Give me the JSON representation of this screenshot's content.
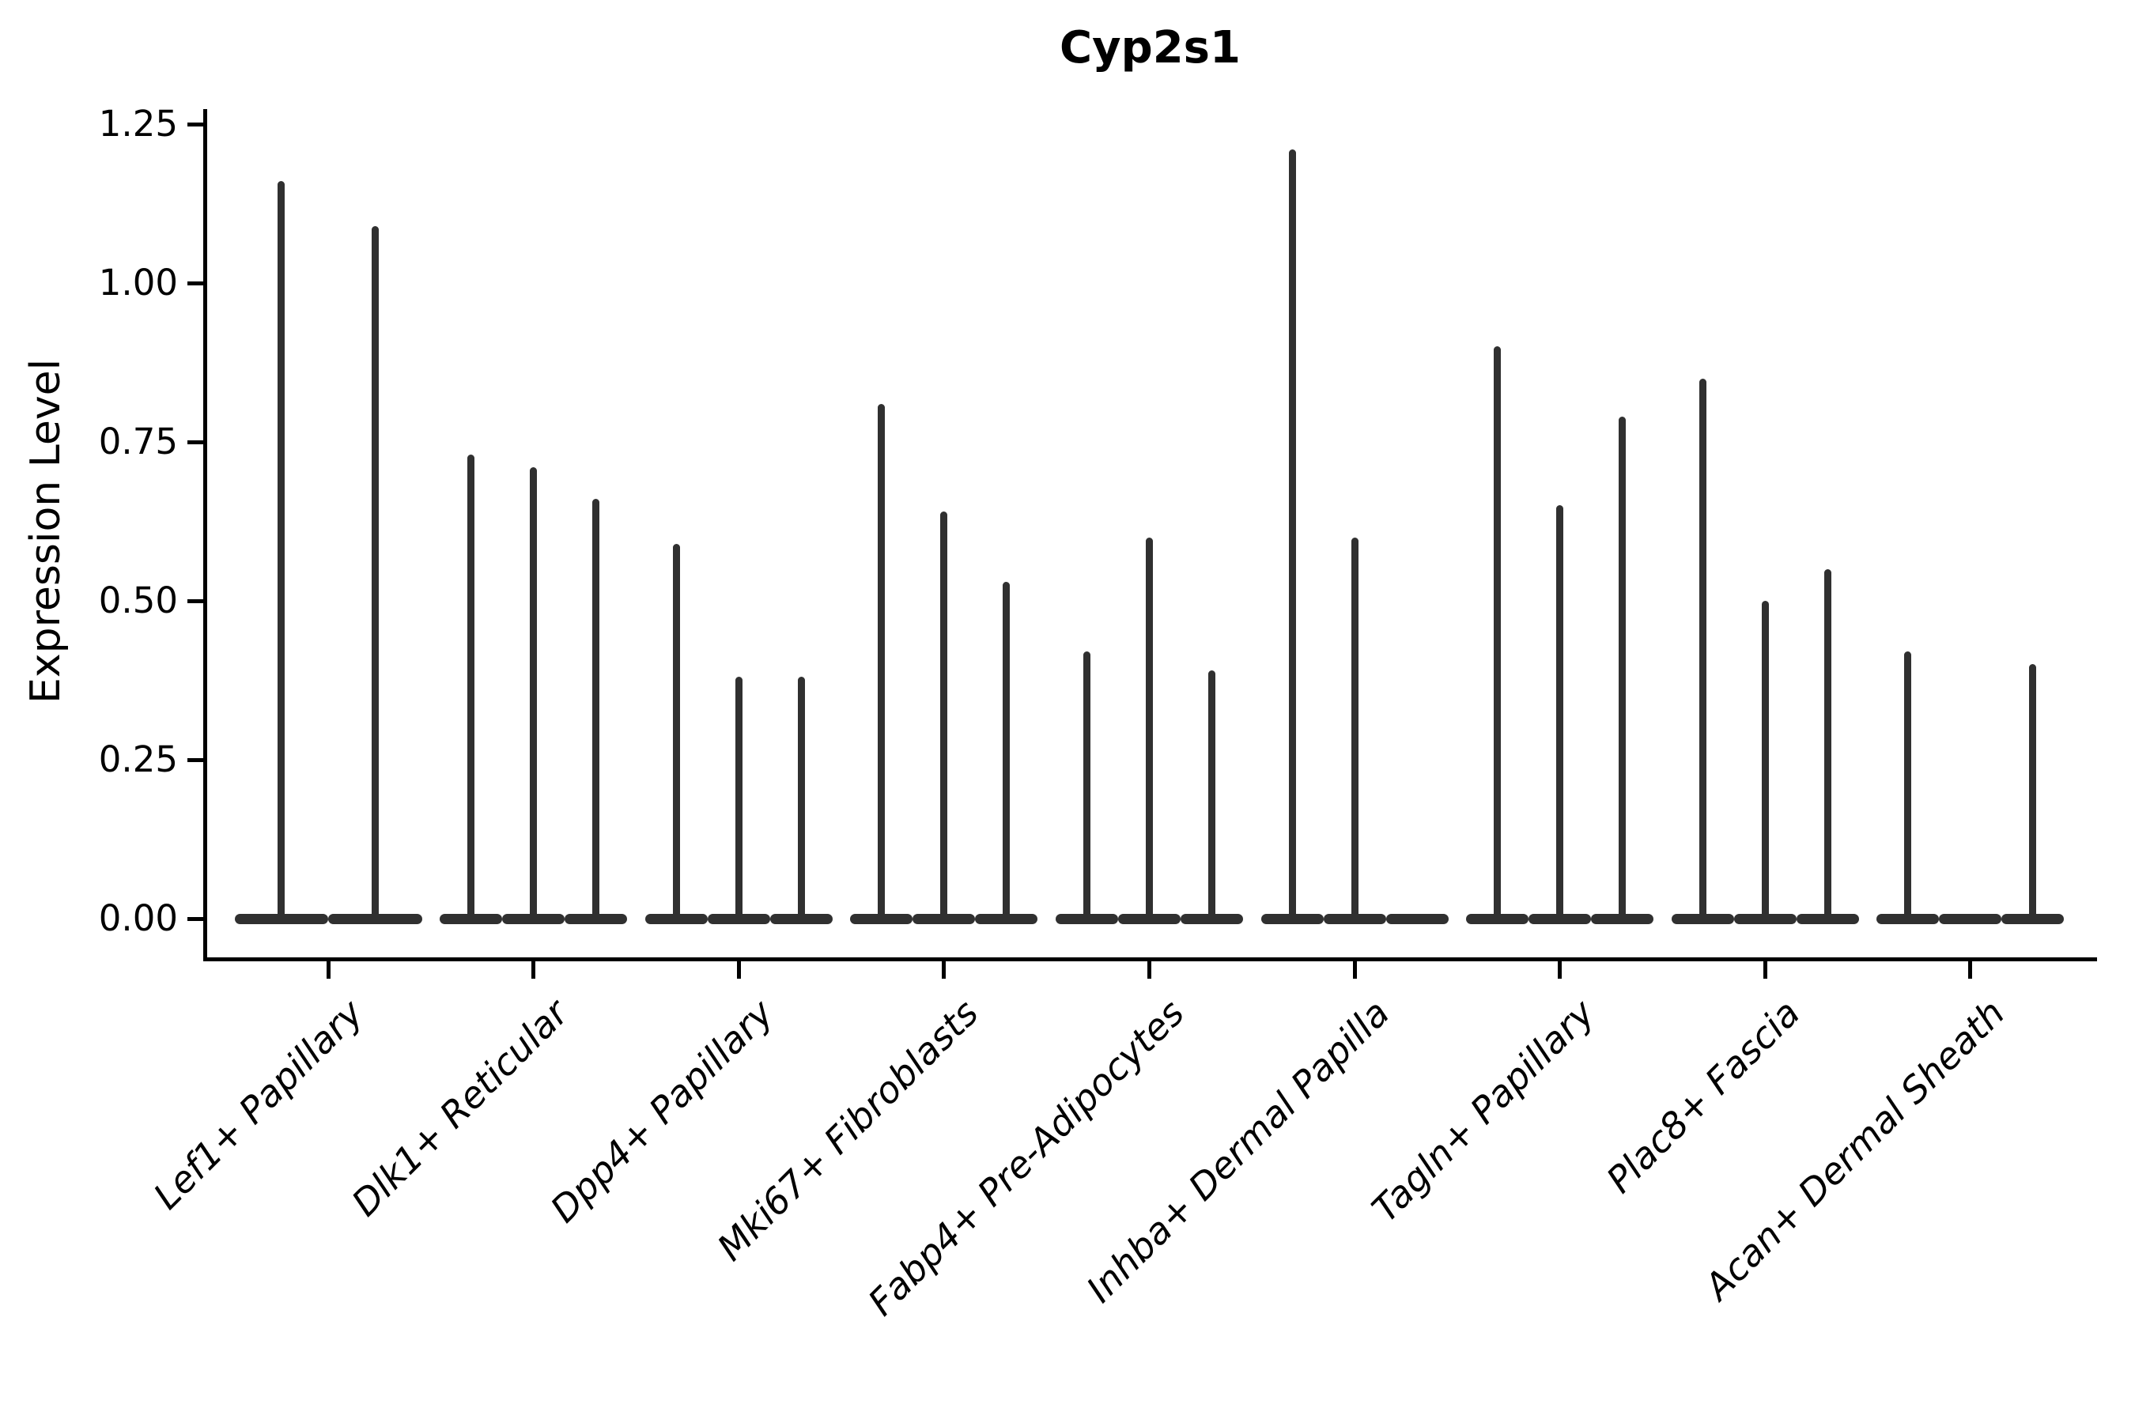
{
  "title": "Cyp2s1",
  "colors": {
    "violin": "#303030",
    "axis": "#000000",
    "text": "#000000",
    "background": "#ffffff"
  },
  "chart_data": {
    "type": "violin",
    "title": "Cyp2s1",
    "xlabel": "",
    "ylabel": "Expression Level",
    "grid": false,
    "legend": null,
    "ylim": [
      -0.06,
      1.27
    ],
    "yticks": [
      {
        "label": "0.00",
        "value": 0.0
      },
      {
        "label": "0.25",
        "value": 0.25
      },
      {
        "label": "0.50",
        "value": 0.5
      },
      {
        "label": "0.75",
        "value": 0.75
      },
      {
        "label": "1.00",
        "value": 1.0
      },
      {
        "label": "1.25",
        "value": 1.25
      }
    ],
    "categories": [
      "Lef1+ Papillary",
      "Dlk1+ Reticular",
      "Dpp4+ Papillary",
      "Mki67+ Fibroblasts",
      "Fabp4+ Pre-Adipocytes",
      "Inhba+ Dermal Papilla",
      "Tagln+ Papillary",
      "Plac8+ Fascia",
      "Acan+ Dermal Sheath"
    ],
    "groups": [
      {
        "category": "Lef1+ Papillary",
        "violin_peaks": [
          1.16,
          1.09
        ]
      },
      {
        "category": "Dlk1+ Reticular",
        "violin_peaks": [
          0.73,
          0.71,
          0.66
        ]
      },
      {
        "category": "Dpp4+ Papillary",
        "violin_peaks": [
          0.59,
          0.38,
          0.38
        ]
      },
      {
        "category": "Mki67+ Fibroblasts",
        "violin_peaks": [
          0.81,
          0.64,
          0.53
        ]
      },
      {
        "category": "Fabp4+ Pre-Adipocytes",
        "violin_peaks": [
          0.42,
          0.6,
          0.39
        ]
      },
      {
        "category": "Inhba+ Dermal Papilla",
        "violin_peaks": [
          1.21,
          0.6,
          0.0
        ]
      },
      {
        "category": "Tagln+ Papillary",
        "violin_peaks": [
          0.9,
          0.65,
          0.79
        ]
      },
      {
        "category": "Plac8+ Fascia",
        "violin_peaks": [
          0.85,
          0.5,
          0.55
        ]
      },
      {
        "category": "Acan+ Dermal Sheath",
        "violin_peaks": [
          0.42,
          0.0,
          0.4
        ]
      }
    ]
  }
}
